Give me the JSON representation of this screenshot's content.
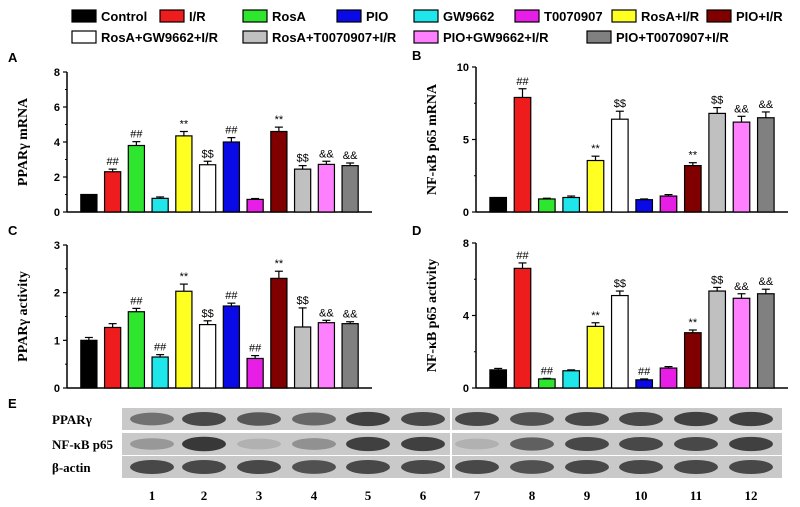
{
  "legend": [
    {
      "label": "Control",
      "color": "#000000"
    },
    {
      "label": "I/R",
      "color": "#ee1c1c"
    },
    {
      "label": "RosA",
      "color": "#2ee62e"
    },
    {
      "label": "PIO",
      "color": "#0a0ae6"
    },
    {
      "label": "GW9662",
      "color": "#1ee6ea"
    },
    {
      "label": "T0070907",
      "color": "#e61ee6"
    },
    {
      "label": "RosA+I/R",
      "color": "#ffff22"
    },
    {
      "label": "PIO+I/R",
      "color": "#800000"
    },
    {
      "label": "RosA+GW9662+I/R",
      "color": "#ffffff"
    },
    {
      "label": "RosA+T0070907+I/R",
      "color": "#c0c0c0"
    },
    {
      "label": "PIO+GW9662+I/R",
      "color": "#ff80ff"
    },
    {
      "label": "PIO+T0070907+I/R",
      "color": "#808080"
    }
  ],
  "chart_data": [
    {
      "panel": "A",
      "type": "bar",
      "ylabel": "PPARγ mRNA",
      "ylim": [
        0,
        8
      ],
      "yticks": [
        0,
        2,
        4,
        6,
        8
      ],
      "order": [
        0,
        1,
        2,
        4,
        6,
        8,
        3,
        5,
        7,
        9,
        10,
        11
      ],
      "values": [
        1.0,
        2.3,
        3.8,
        0.78,
        4.35,
        2.7,
        4.0,
        0.72,
        4.6,
        2.45,
        2.72,
        2.65
      ],
      "errors": [
        0,
        0.15,
        0.22,
        0.08,
        0.25,
        0.2,
        0.25,
        0.05,
        0.25,
        0.2,
        0.18,
        0.15
      ],
      "annotations": [
        "",
        "##",
        "##",
        "",
        "**",
        "$$",
        "##",
        "",
        "**",
        "$$",
        "&&",
        "&&"
      ]
    },
    {
      "panel": "B",
      "type": "bar",
      "ylabel": "NF-κB p65 mRNA",
      "ylim": [
        0,
        10
      ],
      "yticks": [
        0,
        5,
        10
      ],
      "order": [
        0,
        1,
        2,
        4,
        6,
        8,
        3,
        5,
        7,
        9,
        10,
        11
      ],
      "values": [
        1.0,
        7.9,
        0.9,
        1.0,
        3.55,
        6.4,
        0.85,
        1.1,
        3.2,
        6.8,
        6.2,
        6.5
      ],
      "errors": [
        0,
        0.6,
        0.05,
        0.1,
        0.3,
        0.55,
        0.05,
        0.1,
        0.2,
        0.4,
        0.4,
        0.4
      ],
      "annotations": [
        "",
        "##",
        "",
        "",
        "**",
        "$$",
        "",
        "",
        "**",
        "$$",
        "&&",
        "&&"
      ]
    },
    {
      "panel": "C",
      "type": "bar",
      "ylabel": "PPARγ activity",
      "ylim": [
        0,
        3
      ],
      "yticks": [
        0,
        1,
        2,
        3
      ],
      "order": [
        0,
        1,
        2,
        4,
        6,
        8,
        3,
        5,
        7,
        9,
        10,
        11
      ],
      "values": [
        1.0,
        1.27,
        1.6,
        0.65,
        2.03,
        1.33,
        1.72,
        0.62,
        2.3,
        1.28,
        1.37,
        1.35
      ],
      "errors": [
        0.06,
        0.08,
        0.07,
        0.05,
        0.15,
        0.08,
        0.06,
        0.06,
        0.15,
        0.4,
        0.05,
        0.04
      ],
      "annotations": [
        "",
        "",
        "##",
        "##",
        "**",
        "$$",
        "##",
        "##",
        "**",
        "$$",
        "&&",
        "&&"
      ]
    },
    {
      "panel": "D",
      "type": "bar",
      "ylabel": "NF-κB p65 activity",
      "ylim": [
        0,
        8
      ],
      "yticks": [
        0,
        4,
        8
      ],
      "order": [
        0,
        1,
        2,
        4,
        6,
        8,
        3,
        5,
        7,
        9,
        10,
        11
      ],
      "values": [
        1.0,
        6.6,
        0.5,
        0.95,
        3.4,
        5.1,
        0.45,
        1.1,
        3.05,
        5.35,
        4.95,
        5.2
      ],
      "errors": [
        0.08,
        0.3,
        0.03,
        0.05,
        0.2,
        0.25,
        0.05,
        0.08,
        0.15,
        0.2,
        0.25,
        0.25
      ],
      "annotations": [
        "",
        "##",
        "##",
        "",
        "**",
        "$$",
        "##",
        "",
        "**",
        "$$",
        "&&",
        "&&"
      ]
    }
  ],
  "blot": {
    "panel": "E",
    "rows": [
      "PPARγ",
      "NF-κB p65",
      "β-actin"
    ],
    "lanes": [
      "1",
      "2",
      "3",
      "4",
      "5",
      "6",
      "7",
      "8",
      "9",
      "10",
      "11",
      "12"
    ],
    "intensities": [
      [
        0.55,
        0.8,
        0.7,
        0.6,
        0.85,
        0.8,
        0.8,
        0.75,
        0.8,
        0.8,
        0.85,
        0.85
      ],
      [
        0.3,
        0.9,
        0.15,
        0.35,
        0.85,
        0.85,
        0.15,
        0.65,
        0.8,
        0.8,
        0.8,
        0.85
      ],
      [
        0.8,
        0.8,
        0.8,
        0.75,
        0.8,
        0.8,
        0.8,
        0.75,
        0.8,
        0.8,
        0.8,
        0.8
      ]
    ]
  }
}
